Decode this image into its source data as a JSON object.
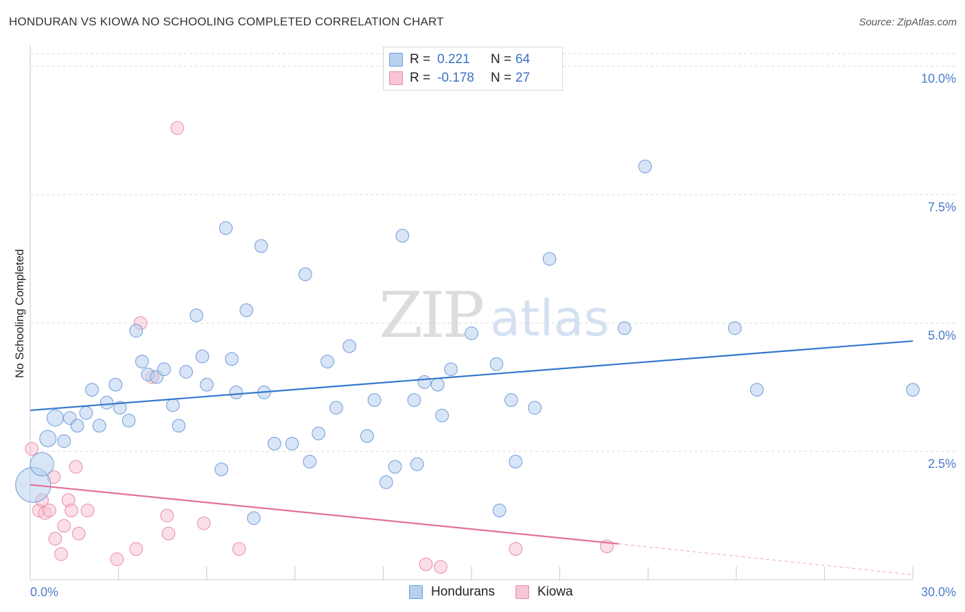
{
  "title": "HONDURAN VS KIOWA NO SCHOOLING COMPLETED CORRELATION CHART",
  "source": "Source: ZipAtlas.com",
  "watermark": {
    "zip": "ZIP",
    "atlas": "atlas"
  },
  "colors": {
    "blue_fill": "#b8d0f0",
    "blue_stroke": "#6d9ad8",
    "blue_line": "#3377cc",
    "pink_fill": "#f7c5d3",
    "pink_stroke": "#e88aa6",
    "pink_line": "#e3709a",
    "tick_text": "#4a7cc8",
    "grid": "#d9d9d9"
  },
  "legend": {
    "rows": [
      {
        "r_label": "R =",
        "r_value": "0.221",
        "n_label": "N =",
        "n_value": "64"
      },
      {
        "r_label": "R =",
        "r_value": "-0.178",
        "n_label": "N =",
        "n_value": "27"
      }
    ]
  },
  "bottom_legend": {
    "hondurans": "Hondurans",
    "kiowa": "Kiowa"
  },
  "chart_data": {
    "type": "scatter",
    "ylabel": "No Schooling Completed",
    "xlim": [
      0,
      30
    ],
    "ylim": [
      0,
      10.25
    ],
    "x_tick_labels": [
      "0.0%",
      "30.0%"
    ],
    "y_ticks": [
      {
        "value": 2.5,
        "label": "2.5%"
      },
      {
        "value": 5.0,
        "label": "5.0%"
      },
      {
        "value": 7.5,
        "label": "7.5%"
      },
      {
        "value": 10.0,
        "label": "10.0%"
      }
    ],
    "x_minor_ticks": [
      3,
      6,
      9,
      12,
      15,
      18,
      21,
      24,
      27,
      30
    ],
    "series": [
      {
        "name": "Hondurans",
        "color": "blue",
        "trend": {
          "x0": 0.0,
          "y0": 3.3,
          "x1": 30.0,
          "y1": 4.65
        },
        "points": [
          [
            0.1,
            1.85,
            3
          ],
          [
            0.4,
            2.25,
            2
          ],
          [
            0.6,
            2.75,
            1.4
          ],
          [
            0.85,
            3.15,
            1.4
          ],
          [
            1.15,
            2.7,
            1.1
          ],
          [
            1.35,
            3.15,
            1.1
          ],
          [
            1.6,
            3.0,
            1.1
          ],
          [
            1.9,
            3.25,
            1.1
          ],
          [
            2.1,
            3.7,
            1.1
          ],
          [
            2.35,
            3.0,
            1.1
          ],
          [
            2.6,
            3.45,
            1.1
          ],
          [
            2.9,
            3.8,
            1.1
          ],
          [
            3.05,
            3.35,
            1.1
          ],
          [
            3.35,
            3.1,
            1.1
          ],
          [
            3.6,
            4.85,
            1.1
          ],
          [
            3.8,
            4.25,
            1.1
          ],
          [
            4.0,
            4.0,
            1.1
          ],
          [
            4.3,
            3.95,
            1.1
          ],
          [
            4.55,
            4.1,
            1.1
          ],
          [
            4.85,
            3.4,
            1.1
          ],
          [
            5.05,
            3.0,
            1.1
          ],
          [
            5.3,
            4.05,
            1.1
          ],
          [
            5.65,
            5.15,
            1.1
          ],
          [
            5.85,
            4.35,
            1.1
          ],
          [
            6.0,
            3.8,
            1.1
          ],
          [
            6.5,
            2.15,
            1.1
          ],
          [
            6.65,
            6.85,
            1.1
          ],
          [
            6.85,
            4.3,
            1.1
          ],
          [
            7.0,
            3.65,
            1.1
          ],
          [
            7.35,
            5.25,
            1.1
          ],
          [
            7.6,
            1.2,
            1.1
          ],
          [
            7.85,
            6.5,
            1.1
          ],
          [
            7.95,
            3.65,
            1.1
          ],
          [
            8.3,
            2.65,
            1.1
          ],
          [
            8.9,
            2.65,
            1.1
          ],
          [
            9.35,
            5.95,
            1.1
          ],
          [
            9.5,
            2.3,
            1.1
          ],
          [
            9.8,
            2.85,
            1.1
          ],
          [
            10.1,
            4.25,
            1.1
          ],
          [
            10.4,
            3.35,
            1.1
          ],
          [
            10.85,
            4.55,
            1.1
          ],
          [
            11.45,
            2.8,
            1.1
          ],
          [
            11.7,
            3.5,
            1.1
          ],
          [
            12.1,
            1.9,
            1.1
          ],
          [
            12.4,
            2.2,
            1.1
          ],
          [
            12.65,
            6.7,
            1.1
          ],
          [
            13.05,
            3.5,
            1.1
          ],
          [
            13.15,
            2.25,
            1.1
          ],
          [
            13.4,
            3.85,
            1.1
          ],
          [
            13.85,
            3.8,
            1.1
          ],
          [
            14.0,
            3.2,
            1.1
          ],
          [
            14.3,
            4.1,
            1.1
          ],
          [
            15.0,
            4.8,
            1.1
          ],
          [
            15.85,
            4.2,
            1.1
          ],
          [
            15.95,
            1.35,
            1.1
          ],
          [
            16.35,
            3.5,
            1.1
          ],
          [
            16.5,
            2.3,
            1.1
          ],
          [
            17.15,
            3.35,
            1.1
          ],
          [
            17.65,
            6.25,
            1.1
          ],
          [
            20.2,
            4.9,
            1.1
          ],
          [
            20.9,
            8.05,
            1.1
          ],
          [
            23.95,
            4.9,
            1.1
          ],
          [
            24.7,
            3.7,
            1.1
          ],
          [
            30.0,
            3.7,
            1.1
          ]
        ]
      },
      {
        "name": "Kiowa",
        "color": "pink",
        "trend": {
          "x0": 0.0,
          "y0": 1.85,
          "x1": 20.0,
          "y1": 0.7,
          "dash_x1": 30.0,
          "dash_y1": 0.1
        },
        "points": [
          [
            0.05,
            2.55,
            1.1
          ],
          [
            0.3,
            1.35,
            1.1
          ],
          [
            0.4,
            1.55,
            1.1
          ],
          [
            0.5,
            1.3,
            1.1
          ],
          [
            0.65,
            1.35,
            1.1
          ],
          [
            0.8,
            2.0,
            1.1
          ],
          [
            0.85,
            0.8,
            1.1
          ],
          [
            1.05,
            0.5,
            1.1
          ],
          [
            1.15,
            1.05,
            1.1
          ],
          [
            1.3,
            1.55,
            1.1
          ],
          [
            1.4,
            1.35,
            1.1
          ],
          [
            1.55,
            2.2,
            1.1
          ],
          [
            1.65,
            0.9,
            1.1
          ],
          [
            1.95,
            1.35,
            1.1
          ],
          [
            2.95,
            0.4,
            1.1
          ],
          [
            3.6,
            0.6,
            1.1
          ],
          [
            3.75,
            5.0,
            1.1
          ],
          [
            4.15,
            3.95,
            1.1
          ],
          [
            4.65,
            1.25,
            1.1
          ],
          [
            4.7,
            0.9,
            1.1
          ],
          [
            5.0,
            8.8,
            1.1
          ],
          [
            5.9,
            1.1,
            1.1
          ],
          [
            7.1,
            0.6,
            1.1
          ],
          [
            13.45,
            0.3,
            1.1
          ],
          [
            13.95,
            0.25,
            1.1
          ],
          [
            16.5,
            0.6,
            1.1
          ],
          [
            19.6,
            0.65,
            1.1
          ]
        ]
      }
    ]
  }
}
